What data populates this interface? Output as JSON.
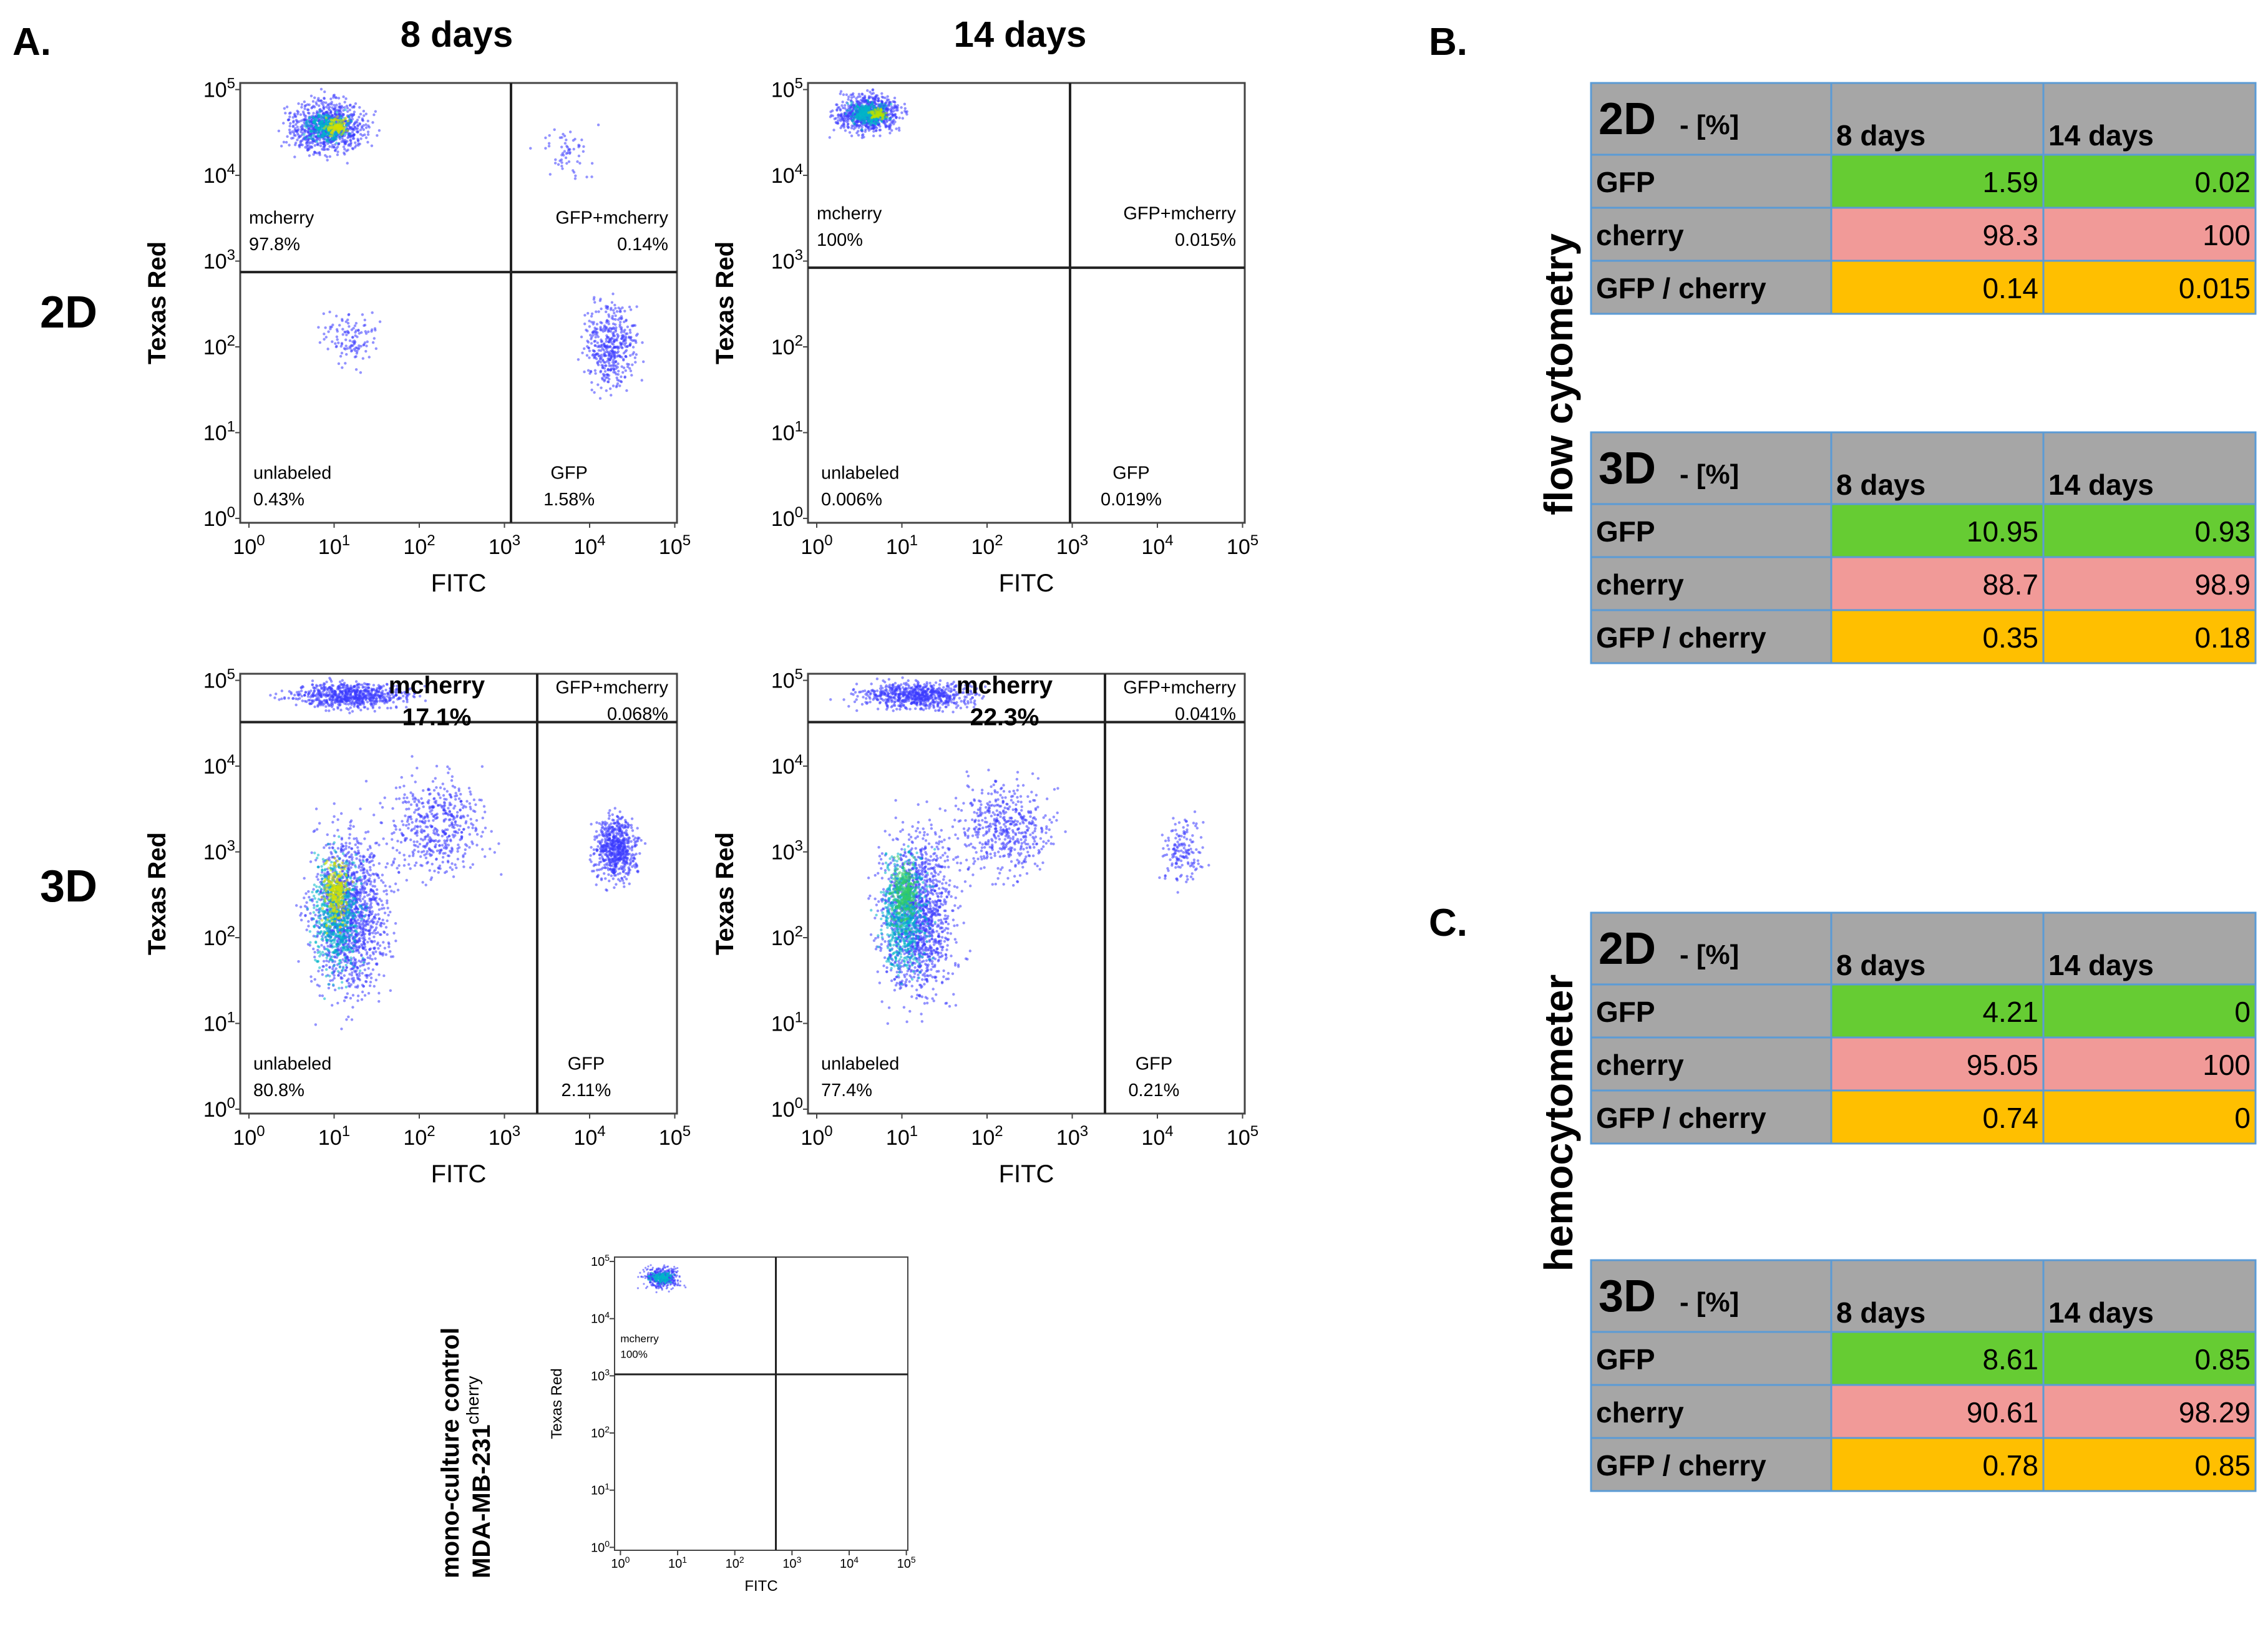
{
  "panel_labels": {
    "a": "A.",
    "b": "B.",
    "c": "C."
  },
  "column_headers": [
    "8 days",
    "14 days"
  ],
  "row_labels": [
    "2D",
    "3D"
  ],
  "mono_control": {
    "line1": "mono-culture control",
    "line2": "MDA-MB-231",
    "superscript": "cherry"
  },
  "axis": {
    "x_label": "FITC",
    "y_label": "Texas Red"
  },
  "tick_labels": {
    "x_base": [
      "10",
      "10",
      "10",
      "10",
      "10",
      "10"
    ],
    "x_exp": [
      "0",
      "1",
      "2",
      "3",
      "4",
      "5"
    ],
    "y_base": [
      "10",
      "10",
      "10",
      "10",
      "10",
      "10"
    ],
    "y_exp": [
      "0",
      "1",
      "2",
      "3",
      "4",
      "5"
    ]
  },
  "side_labels": {
    "b": "flow cytometry",
    "c": "hemocytometer"
  },
  "plots": [
    {
      "id": "2d-8d",
      "q": {
        "ul": [
          "mcherry",
          "97.8%"
        ],
        "ur": [
          "GFP+mcherry",
          "0.14%"
        ],
        "ll": [
          "unlabeled",
          "0.43%"
        ],
        "lr": [
          "GFP",
          "1.58%"
        ]
      }
    },
    {
      "id": "2d-14d",
      "q": {
        "ul": [
          "mcherry",
          "100%"
        ],
        "ur": [
          "GFP+mcherry",
          "0.015%"
        ],
        "ll": [
          "unlabeled",
          "0.006%"
        ],
        "lr": [
          "GFP",
          "0.019%"
        ]
      }
    },
    {
      "id": "3d-8d",
      "q": {
        "ul": [
          "mcherry",
          "17.1%"
        ],
        "ur": [
          "GFP+mcherry",
          "0.068%"
        ],
        "ll": [
          "unlabeled",
          "80.8%"
        ],
        "lr": [
          "GFP",
          "2.11%"
        ]
      }
    },
    {
      "id": "3d-14d",
      "q": {
        "ul": [
          "mcherry",
          "22.3%"
        ],
        "ur": [
          "GFP+mcherry",
          "0.041%"
        ],
        "ll": [
          "unlabeled",
          "77.4%"
        ],
        "lr": [
          "GFP",
          "0.21%"
        ]
      }
    },
    {
      "id": "mono",
      "q": {
        "ul": [
          "mcherry",
          "100%"
        ]
      }
    }
  ],
  "tables": [
    {
      "id": "flow-2d",
      "title": "2D",
      "unit": "- [%]",
      "cols": [
        "8 days",
        "14 days"
      ],
      "rows": [
        {
          "label": "GFP",
          "v": [
            "1.59",
            "0.02"
          ]
        },
        {
          "label": "cherry",
          "v": [
            "98.3",
            "100"
          ]
        },
        {
          "label": "GFP / cherry",
          "v": [
            "0.14",
            "0.015"
          ]
        }
      ]
    },
    {
      "id": "flow-3d",
      "title": "3D",
      "unit": "- [%]",
      "cols": [
        "8 days",
        "14 days"
      ],
      "rows": [
        {
          "label": "GFP",
          "v": [
            "10.95",
            "0.93"
          ]
        },
        {
          "label": "cherry",
          "v": [
            "88.7",
            "98.9"
          ]
        },
        {
          "label": "GFP / cherry",
          "v": [
            "0.35",
            "0.18"
          ]
        }
      ]
    },
    {
      "id": "hemo-2d",
      "title": "2D",
      "unit": "- [%]",
      "cols": [
        "8 days",
        "14 days"
      ],
      "rows": [
        {
          "label": "GFP",
          "v": [
            "4.21",
            "0"
          ]
        },
        {
          "label": "cherry",
          "v": [
            "95.05",
            "100"
          ]
        },
        {
          "label": "GFP / cherry",
          "v": [
            "0.74",
            "0"
          ]
        }
      ]
    },
    {
      "id": "hemo-3d",
      "title": "3D",
      "unit": "- [%]",
      "cols": [
        "8 days",
        "14 days"
      ],
      "rows": [
        {
          "label": "GFP",
          "v": [
            "8.61",
            "0.85"
          ]
        },
        {
          "label": "cherry",
          "v": [
            "90.61",
            "98.29"
          ]
        },
        {
          "label": "GFP / cherry",
          "v": [
            "0.78",
            "0.85"
          ]
        }
      ]
    }
  ],
  "colors": {
    "gfp": "#66cc33",
    "cherry": "#f19a98",
    "ratio": "#ffbf00",
    "header": "#a6a6a6",
    "border": "#5b9bd5",
    "dots": "#3a3aff"
  }
}
